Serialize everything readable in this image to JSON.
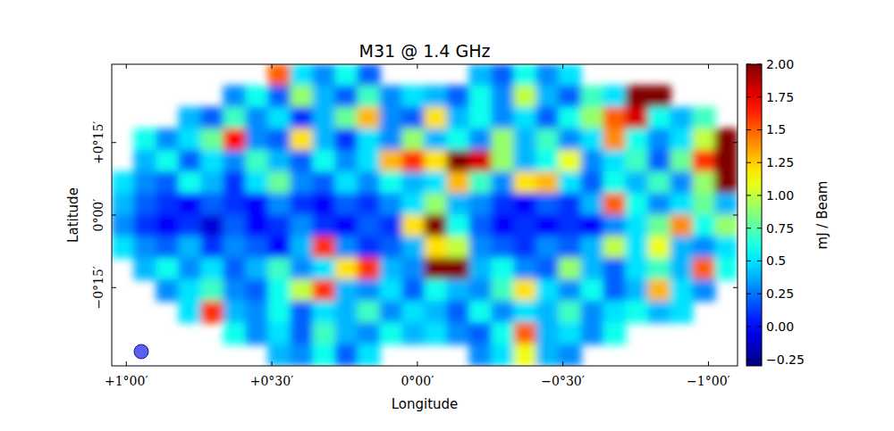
{
  "chart_data": {
    "type": "heatmap",
    "title": "M31 @ 1.4 GHz",
    "x_label": "Longitude",
    "y_label": "Latitude",
    "xlim": [
      1.05,
      -1.1
    ],
    "ylim": [
      -0.52,
      0.52
    ],
    "xticks": [
      {
        "value": 1,
        "label": "+1°00′"
      },
      {
        "value": 0.5,
        "label": "+0°30′"
      },
      {
        "value": 0,
        "label": "0°00′"
      },
      {
        "value": -0.5,
        "label": "−0°30′"
      },
      {
        "value": -1,
        "label": "−1°00′"
      }
    ],
    "yticks": [
      {
        "value": 0.25,
        "label": "+0°15′"
      },
      {
        "value": 0,
        "label": "0°00′"
      },
      {
        "value": -0.25,
        "label": "−0°15′"
      }
    ],
    "colorbar": {
      "label": "mJ / Beam",
      "range": [
        -0.3,
        2.0
      ],
      "ticks": [
        {
          "value": -0.25,
          "label": "−0.25"
        },
        {
          "value": 0,
          "label": "0.00"
        },
        0.25,
        0.5,
        0.75,
        {
          "value": 1,
          "label": "1.00"
        },
        1.25,
        1.5,
        1.75,
        {
          "value": 2,
          "label": "2.00"
        }
      ]
    },
    "values": [
      [
        null,
        null,
        null,
        null,
        null,
        null,
        null,
        1.5,
        0.5,
        0.3,
        0.6,
        0.2,
        null,
        null,
        null,
        null,
        0.4,
        0.2,
        0.6,
        0.3,
        0.5,
        null,
        null,
        null,
        null,
        null,
        null,
        null
      ],
      [
        null,
        null,
        null,
        null,
        null,
        0.3,
        0.6,
        0.2,
        0.9,
        0.4,
        0.2,
        0.7,
        0.3,
        0.5,
        0.4,
        0.2,
        0.6,
        0.3,
        1.0,
        0.4,
        0.2,
        0.7,
        0.5,
        2.2,
        2.3,
        null,
        null,
        null
      ],
      [
        null,
        null,
        null,
        0.4,
        0.2,
        0.7,
        0.3,
        0.5,
        0.1,
        0.4,
        0.8,
        1.3,
        0.3,
        0.2,
        1.2,
        0.4,
        0.6,
        0.3,
        0.5,
        0.2,
        0.6,
        0.9,
        1.5,
        1.8,
        0.6,
        0.4,
        0.7,
        null
      ],
      [
        null,
        0.6,
        0.3,
        0.5,
        0.8,
        1.7,
        0.3,
        0.2,
        1.2,
        0.4,
        0.1,
        0.5,
        0.3,
        0.9,
        0.4,
        0.6,
        0.3,
        0.9,
        0.4,
        0.7,
        0.3,
        0.5,
        1.4,
        0.6,
        0.3,
        0.5,
        1.0,
        2.3
      ],
      [
        null,
        0.4,
        0.6,
        0.2,
        0.5,
        0.3,
        0.7,
        0.4,
        0.2,
        0.6,
        0.3,
        0.5,
        1.3,
        1.6,
        1.2,
        2.2,
        1.8,
        0.9,
        0.4,
        0.6,
        1.1,
        0.3,
        0.5,
        0.7,
        0.2,
        0.8,
        1.6,
        2.5
      ],
      [
        0.5,
        0.3,
        0.2,
        0.6,
        0.4,
        0.1,
        0.5,
        0.8,
        0.3,
        0.2,
        0.5,
        0.3,
        0.6,
        0.4,
        0.5,
        1.3,
        0.7,
        0.3,
        1.2,
        1.3,
        0.5,
        0.2,
        0.6,
        0.4,
        0.7,
        0.3,
        0.9,
        2.0
      ],
      [
        0.4,
        0.2,
        0.1,
        0.0,
        0.2,
        0.1,
        0.0,
        0.3,
        0.1,
        0.0,
        0.2,
        0.1,
        0.3,
        0.5,
        0.9,
        0.4,
        0.3,
        0.1,
        0.0,
        0.2,
        0.1,
        0.4,
        1.5,
        0.6,
        0.3,
        0.5,
        0.8,
        0.4
      ],
      [
        0.3,
        0.1,
        0.0,
        0.1,
        -0.1,
        0.2,
        0.0,
        0.1,
        0.3,
        0.1,
        0.0,
        0.2,
        0.1,
        1.2,
        2.3,
        0.6,
        0.2,
        0.0,
        0.1,
        0.0,
        0.1,
        0.0,
        0.3,
        0.5,
        0.8,
        1.4,
        0.6,
        0.9
      ],
      [
        0.5,
        0.3,
        0.2,
        0.4,
        0.1,
        0.3,
        0.2,
        0.0,
        0.4,
        1.6,
        0.3,
        0.1,
        0.2,
        0.4,
        1.2,
        1.0,
        0.3,
        0.2,
        0.1,
        0.3,
        0.2,
        0.4,
        1.0,
        0.5,
        1.1,
        0.4,
        0.3,
        0.5
      ],
      [
        null,
        0.4,
        0.6,
        0.3,
        0.5,
        0.2,
        0.4,
        0.7,
        0.3,
        0.5,
        1.2,
        1.6,
        0.4,
        0.3,
        2.2,
        2.0,
        0.4,
        0.6,
        0.3,
        0.2,
        0.9,
        0.4,
        0.2,
        0.5,
        0.7,
        0.4,
        1.5,
        0.6
      ],
      [
        null,
        null,
        0.3,
        0.5,
        0.7,
        0.3,
        0.2,
        0.6,
        1.0,
        1.6,
        0.4,
        0.3,
        0.5,
        0.2,
        0.6,
        0.4,
        0.3,
        0.7,
        1.2,
        0.5,
        0.3,
        0.6,
        0.2,
        0.4,
        1.3,
        0.5,
        0.3,
        null
      ],
      [
        null,
        null,
        null,
        0.5,
        1.6,
        0.4,
        0.3,
        0.6,
        0.2,
        0.5,
        0.4,
        0.7,
        0.3,
        0.5,
        0.4,
        0.2,
        0.6,
        0.3,
        0.5,
        0.4,
        0.7,
        0.3,
        0.5,
        0.6,
        0.4,
        0.5,
        null,
        null
      ],
      [
        null,
        null,
        null,
        null,
        null,
        0.6,
        0.3,
        0.5,
        0.2,
        0.7,
        0.4,
        0.3,
        0.6,
        0.4,
        0.5,
        0.3,
        0.2,
        0.6,
        1.5,
        0.4,
        0.5,
        0.3,
        0.6,
        null,
        null,
        null,
        null,
        null
      ],
      [
        null,
        null,
        null,
        null,
        null,
        null,
        null,
        0.4,
        0.3,
        0.6,
        0.2,
        0.5,
        null,
        null,
        null,
        null,
        0.3,
        0.5,
        1.1,
        0.4,
        0.3,
        null,
        null,
        null,
        null,
        null,
        null,
        null
      ]
    ]
  }
}
